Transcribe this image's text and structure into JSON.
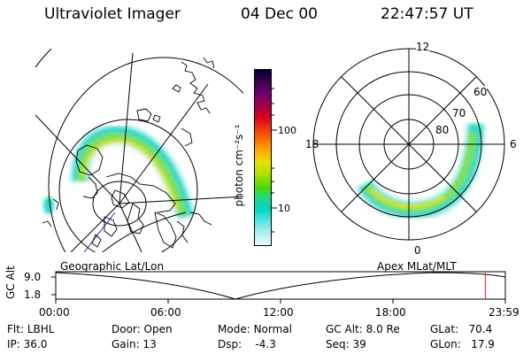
{
  "header": {
    "title": "Ultraviolet Imager",
    "date": "04 Dec 00",
    "time": "22:47:57 UT"
  },
  "colorbar": {
    "unit_label": "photon cm⁻²s⁻¹",
    "ticks": [
      "100",
      "10"
    ],
    "colors": [
      "#000033",
      "#3a0050",
      "#6a0070",
      "#a00050",
      "#d40020",
      "#f03010",
      "#ff7000",
      "#ffb000",
      "#e8e000",
      "#a8e000",
      "#50d800",
      "#20d880",
      "#00d8c8",
      "#60e8e8",
      "#b0f0f0",
      "#e8fafa"
    ]
  },
  "geo_panel": {
    "caption": "Geographic Lat/Lon"
  },
  "polar_panel": {
    "caption": "Apex MLat/MLT",
    "mlt_labels": {
      "top": "12",
      "left": "18",
      "right": "6",
      "bottom": "0"
    },
    "lat_labels": [
      "60",
      "70",
      "80"
    ]
  },
  "altitude_plot": {
    "axis_label": "GC Alt",
    "y_ticks": [
      "9.0",
      "1.8"
    ],
    "x_ticks": [
      "00:00",
      "06:00",
      "12:00",
      "18:00",
      "23:59"
    ],
    "marker_time_fraction": 0.9555
  },
  "status": {
    "flt_label": "Flt:",
    "flt_value": "LBHL",
    "ip_label": "IP:",
    "ip_value": "36.0",
    "door_label": "Door:",
    "door_value": "Open",
    "gain_label": "Gain:",
    "gain_value": "13",
    "mode_label": "Mode:",
    "mode_value": "Normal",
    "dsp_label": "Dsp:",
    "dsp_value": "-4.3",
    "gcalt_label": "GC Alt:",
    "gcalt_value": "8.0 Re",
    "seq_label": "Seq:",
    "seq_value": "39",
    "glat_label": "GLat:",
    "glat_value": "70.4",
    "glon_label": "GLon:",
    "glon_value": "17.9"
  }
}
